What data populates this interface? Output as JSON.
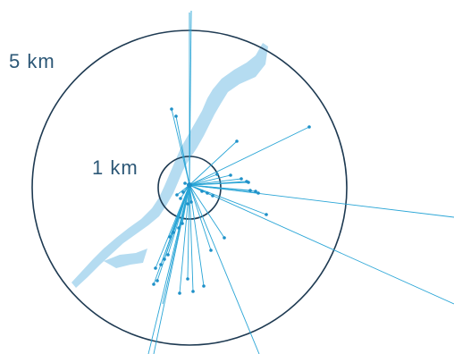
{
  "rings": {
    "outer_label": "5 km",
    "inner_label": "1 km"
  },
  "colors": {
    "background": "#ffffff",
    "ring_stroke": "#1e3a52",
    "river_fill": "#b5dcf1",
    "ray_stroke": "#29a5d6",
    "endpoint_fill": "#1e90c8",
    "label_text": "#2d5877"
  }
}
